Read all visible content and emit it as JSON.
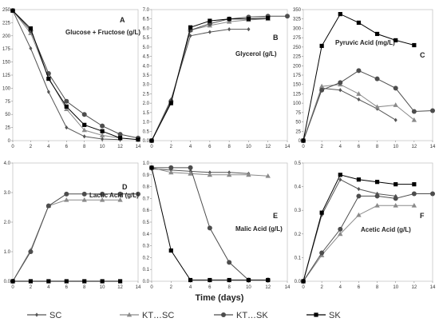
{
  "figure": {
    "xlabel": "Time (days)",
    "legend_placement": "bottom"
  },
  "legend": [
    {
      "name": "SC",
      "marker": "diamond",
      "color": "#555555"
    },
    {
      "name": "KT…SC",
      "marker": "triangle",
      "color": "#8a8a8a"
    },
    {
      "name": "KT…SK",
      "marker": "circle",
      "color": "#4d4d4d"
    },
    {
      "name": "SK",
      "marker": "square",
      "color": "#000000"
    }
  ],
  "chart_data": [
    {
      "type": "line",
      "letter": "A",
      "title": "Glucose + Fructose (g/L)",
      "xlim": [
        0,
        14
      ],
      "ylim": [
        0,
        250
      ],
      "xticks": [
        0,
        2,
        4,
        6,
        8,
        10,
        12,
        14
      ],
      "yticks": [
        0,
        25,
        50,
        75,
        100,
        125,
        150,
        175,
        200,
        225,
        250
      ],
      "series": [
        {
          "name": "SC",
          "x": [
            0,
            2,
            4,
            6,
            8,
            10,
            12
          ],
          "y": [
            248,
            176,
            93,
            25,
            8,
            3,
            2
          ]
        },
        {
          "name": "KT…SC",
          "x": [
            0,
            2,
            4,
            6,
            8,
            10,
            12
          ],
          "y": [
            248,
            205,
            120,
            60,
            20,
            10,
            5
          ]
        },
        {
          "name": "KT…SK",
          "x": [
            0,
            2,
            4,
            6,
            8,
            10,
            12,
            14
          ],
          "y": [
            248,
            210,
            128,
            75,
            50,
            28,
            12,
            5
          ]
        },
        {
          "name": "SK",
          "x": [
            0,
            2,
            4,
            6,
            8,
            10,
            12,
            14
          ],
          "y": [
            248,
            214,
            118,
            65,
            30,
            18,
            5,
            2
          ]
        }
      ]
    },
    {
      "type": "line",
      "letter": "B",
      "title": "Glycerol (g/L)",
      "xlim": [
        0,
        14
      ],
      "ylim": [
        0,
        7
      ],
      "xticks": [
        0,
        2,
        4,
        6,
        8,
        10,
        12,
        14
      ],
      "yticks": [
        0,
        0.5,
        1,
        1.5,
        2,
        2.5,
        3,
        3.5,
        4,
        4.5,
        5,
        5.5,
        6,
        6.5,
        7
      ],
      "ytick_labels": [
        "0.0",
        "0.5",
        "1.0",
        "1.5",
        "2.0",
        "2.5",
        "3.0",
        "3.5",
        "4.0",
        "4.5",
        "5.0",
        "5.5",
        "6.0",
        "6.5",
        "7.0"
      ],
      "series": [
        {
          "name": "SC",
          "x": [
            0,
            2,
            4,
            6,
            8,
            10
          ],
          "y": [
            0,
            2.2,
            5.6,
            5.8,
            5.95,
            5.95
          ]
        },
        {
          "name": "KT…SC",
          "x": [
            0,
            2,
            4,
            6,
            8,
            10,
            12
          ],
          "y": [
            0,
            2.1,
            5.9,
            6.15,
            6.35,
            6.45,
            6.5
          ]
        },
        {
          "name": "KT…SK",
          "x": [
            0,
            2,
            4,
            6,
            8,
            10,
            12,
            14
          ],
          "y": [
            0,
            2.1,
            5.9,
            6.25,
            6.5,
            6.6,
            6.65,
            6.65
          ]
        },
        {
          "name": "SK",
          "x": [
            0,
            2,
            4,
            6,
            8,
            10,
            12
          ],
          "y": [
            0,
            2.0,
            6.05,
            6.4,
            6.5,
            6.5,
            6.55
          ]
        }
      ]
    },
    {
      "type": "line",
      "letter": "C",
      "title": "Pyruvic Acid (mg/L)",
      "xlim": [
        0,
        14
      ],
      "ylim": [
        0,
        350
      ],
      "xticks": [
        0,
        2,
        4,
        6,
        8,
        10,
        12,
        14
      ],
      "yticks": [
        0,
        25,
        50,
        75,
        100,
        125,
        150,
        175,
        200,
        225,
        250,
        275,
        300,
        325,
        350
      ],
      "series": [
        {
          "name": "SC",
          "x": [
            0,
            2,
            4,
            6,
            8,
            10
          ],
          "y": [
            0,
            140,
            135,
            110,
            85,
            55
          ]
        },
        {
          "name": "KT…SC",
          "x": [
            0,
            2,
            4,
            6,
            8,
            10,
            12
          ],
          "y": [
            0,
            145,
            150,
            125,
            90,
            95,
            55
          ]
        },
        {
          "name": "KT…SK",
          "x": [
            0,
            2,
            4,
            6,
            8,
            10,
            12,
            14
          ],
          "y": [
            0,
            135,
            155,
            187,
            165,
            140,
            78,
            80
          ]
        },
        {
          "name": "SK",
          "x": [
            0,
            2,
            4,
            6,
            8,
            10,
            12
          ],
          "y": [
            0,
            253,
            338,
            315,
            285,
            268,
            255
          ]
        }
      ]
    },
    {
      "type": "line",
      "letter": "D",
      "title": "Lactic Acid (g/L)",
      "xlim": [
        0,
        14
      ],
      "ylim": [
        0,
        4
      ],
      "xticks": [
        0,
        2,
        4,
        6,
        8,
        10,
        12,
        14
      ],
      "yticks": [
        0,
        1,
        2,
        3,
        4
      ],
      "ytick_labels": [
        "0.0",
        "1.0",
        "2.0",
        "3.0",
        "4.0"
      ],
      "series": [
        {
          "name": "SC",
          "x": [
            0,
            2,
            4,
            6,
            8,
            10,
            12
          ],
          "y": [
            0,
            0,
            0,
            0,
            0,
            0,
            0
          ]
        },
        {
          "name": "KT…SC",
          "x": [
            0,
            2,
            4,
            6,
            8,
            10,
            12
          ],
          "y": [
            0,
            1.05,
            2.55,
            2.75,
            2.75,
            2.75,
            2.75
          ]
        },
        {
          "name": "KT…SK",
          "x": [
            0,
            2,
            4,
            6,
            8,
            10,
            12,
            14
          ],
          "y": [
            0,
            1.0,
            2.55,
            2.95,
            2.95,
            2.95,
            2.95,
            2.95
          ]
        },
        {
          "name": "SK",
          "x": [
            0,
            2,
            4,
            6,
            8,
            10,
            12
          ],
          "y": [
            0,
            0,
            0,
            0,
            0,
            0,
            0
          ]
        }
      ]
    },
    {
      "type": "line",
      "letter": "E",
      "title": "Malic Acid (g/L)",
      "xlim": [
        0,
        14
      ],
      "ylim": [
        0,
        1
      ],
      "xticks": [
        0,
        2,
        4,
        6,
        8,
        10,
        12,
        14
      ],
      "yticks": [
        0,
        0.1,
        0.2,
        0.3,
        0.4,
        0.5,
        0.6,
        0.7,
        0.8,
        0.9,
        1.0
      ],
      "ytick_labels": [
        "0.0",
        "0.1",
        "0.2",
        "0.3",
        "0.4",
        "0.5",
        "0.6",
        "0.7",
        "0.8",
        "0.9",
        "1.0"
      ],
      "series": [
        {
          "name": "SC",
          "x": [
            0,
            2,
            4,
            6,
            8,
            10
          ],
          "y": [
            0.95,
            0.94,
            0.93,
            0.92,
            0.92,
            0.91
          ]
        },
        {
          "name": "KT…SC",
          "x": [
            0,
            2,
            4,
            6,
            8,
            10,
            12
          ],
          "y": [
            0.96,
            0.92,
            0.91,
            0.9,
            0.9,
            0.9,
            0.89
          ]
        },
        {
          "name": "KT…SK",
          "x": [
            0,
            2,
            4,
            6,
            8,
            10,
            12
          ],
          "y": [
            0.96,
            0.96,
            0.96,
            0.45,
            0.16,
            0.01,
            0.01
          ]
        },
        {
          "name": "SK",
          "x": [
            0,
            2,
            4,
            6,
            8,
            10,
            12
          ],
          "y": [
            0.96,
            0.26,
            0.01,
            0.01,
            0.01,
            0.01,
            0.01
          ]
        }
      ]
    },
    {
      "type": "line",
      "letter": "F",
      "title": "Acetic Acid (g/L)",
      "xlim": [
        0,
        14
      ],
      "ylim": [
        0,
        0.5
      ],
      "xticks": [
        0,
        2,
        4,
        6,
        8,
        10,
        12,
        14
      ],
      "yticks": [
        0,
        0.1,
        0.2,
        0.3,
        0.4,
        0.5
      ],
      "ytick_labels": [
        "0.0",
        "0.1",
        "0.2",
        "0.3",
        "0.4",
        "0.5"
      ],
      "series": [
        {
          "name": "SC",
          "x": [
            0,
            2,
            4,
            6,
            8,
            10
          ],
          "y": [
            0,
            0.28,
            0.43,
            0.39,
            0.37,
            0.36
          ]
        },
        {
          "name": "KT…SC",
          "x": [
            0,
            2,
            4,
            6,
            8,
            10,
            12
          ],
          "y": [
            0,
            0.11,
            0.2,
            0.28,
            0.32,
            0.32,
            0.32
          ]
        },
        {
          "name": "KT…SK",
          "x": [
            0,
            2,
            4,
            6,
            8,
            10,
            12,
            14
          ],
          "y": [
            0,
            0.12,
            0.22,
            0.36,
            0.36,
            0.35,
            0.37,
            0.37
          ]
        },
        {
          "name": "SK",
          "x": [
            0,
            2,
            4,
            6,
            8,
            10,
            12
          ],
          "y": [
            0,
            0.29,
            0.45,
            0.43,
            0.42,
            0.41,
            0.41
          ]
        }
      ]
    }
  ]
}
